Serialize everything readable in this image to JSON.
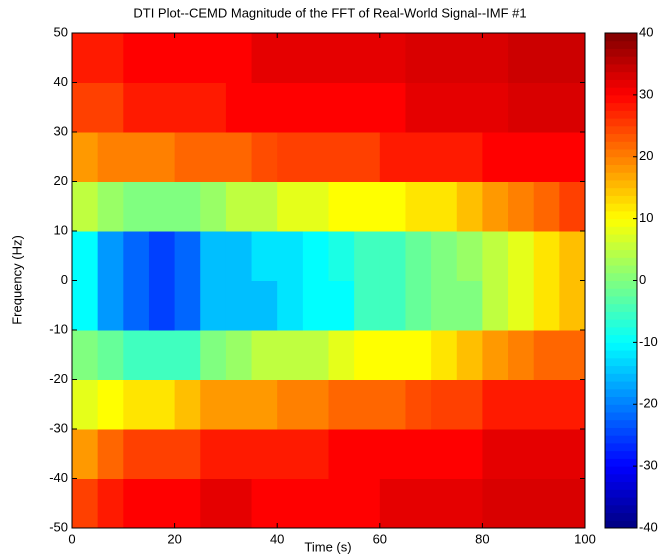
{
  "chart_data": {
    "type": "heatmap",
    "title": "DTI Plot--CEMD Magnitude of the FFT of Real-World Signal--IMF #1",
    "x_label": "Time (s)",
    "y_label": "Frequency (Hz)",
    "colormap": "jet",
    "x": [
      2.5,
      7.5,
      12.5,
      17.5,
      22.5,
      27.5,
      32.5,
      37.5,
      42.5,
      47.5,
      52.5,
      57.5,
      62.5,
      67.5,
      72.5,
      77.5,
      82.5,
      87.5,
      92.5,
      97.5
    ],
    "y": [
      -45,
      -35,
      -25,
      -15,
      -5,
      5,
      15,
      25,
      35,
      45
    ],
    "z": [
      [
        25,
        28,
        30,
        30,
        30,
        32,
        32,
        30,
        30,
        30,
        30,
        30,
        32,
        32,
        32,
        32,
        33,
        33,
        33,
        33
      ],
      [
        18,
        22,
        25,
        25,
        25,
        28,
        28,
        28,
        28,
        28,
        30,
        30,
        30,
        30,
        30,
        30,
        32,
        32,
        32,
        32
      ],
      [
        8,
        10,
        12,
        12,
        15,
        18,
        18,
        18,
        20,
        20,
        22,
        22,
        22,
        24,
        25,
        25,
        28,
        28,
        28,
        28
      ],
      [
        0,
        -2,
        -5,
        -5,
        -5,
        0,
        2,
        5,
        5,
        5,
        8,
        10,
        10,
        10,
        12,
        15,
        18,
        20,
        22,
        22
      ],
      [
        -10,
        -18,
        -22,
        -25,
        -22,
        -15,
        -15,
        -15,
        -12,
        -10,
        -10,
        -5,
        -5,
        -2,
        0,
        0,
        5,
        8,
        12,
        15
      ],
      [
        -10,
        -18,
        -22,
        -25,
        -22,
        -15,
        -15,
        -12,
        -12,
        -10,
        -8,
        -5,
        -5,
        -2,
        0,
        2,
        5,
        8,
        12,
        15
      ],
      [
        5,
        2,
        0,
        0,
        0,
        2,
        5,
        5,
        8,
        8,
        10,
        10,
        10,
        12,
        12,
        15,
        18,
        20,
        22,
        25
      ],
      [
        18,
        20,
        20,
        20,
        22,
        22,
        22,
        24,
        25,
        25,
        25,
        25,
        28,
        28,
        28,
        28,
        30,
        30,
        30,
        30
      ],
      [
        25,
        25,
        28,
        28,
        28,
        28,
        30,
        30,
        30,
        30,
        30,
        30,
        30,
        32,
        32,
        32,
        32,
        33,
        33,
        33
      ],
      [
        28,
        28,
        30,
        30,
        30,
        30,
        30,
        32,
        32,
        32,
        32,
        32,
        32,
        33,
        33,
        33,
        33,
        34,
        34,
        34
      ]
    ],
    "xlim": [
      0,
      100
    ],
    "xticks": [
      0,
      20,
      40,
      60,
      80,
      100
    ],
    "ylim": [
      -50,
      50
    ],
    "yticks": [
      -50,
      -40,
      -30,
      -20,
      -10,
      0,
      10,
      20,
      30,
      40,
      50
    ],
    "clim": [
      -40,
      40
    ],
    "cticks": [
      -40,
      -30,
      -20,
      -10,
      0,
      10,
      20,
      30,
      40
    ]
  }
}
